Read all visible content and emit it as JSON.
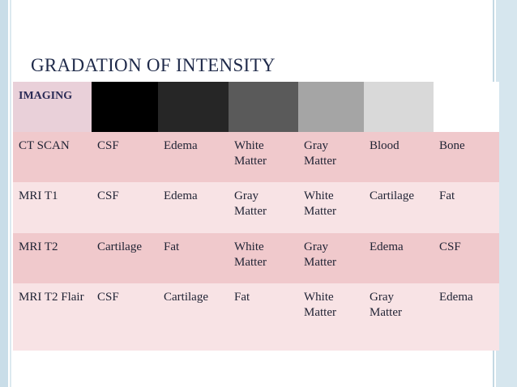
{
  "title": "GRADATION OF INTENSITY",
  "table": {
    "header": "IMAGING",
    "rows": [
      [
        "CT SCAN",
        "CSF",
        "Edema",
        "White Matter",
        "Gray Matter",
        "Blood",
        "Bone"
      ],
      [
        "MRI T1",
        "CSF",
        "Edema",
        "Gray Matter",
        "White Matter",
        "Cartilage",
        "Fat"
      ],
      [
        "MRI T2",
        "Cartilage",
        "Fat",
        "White Matter",
        "Gray Matter",
        "Edema",
        "CSF"
      ],
      [
        "MRI T2 Flair",
        "CSF",
        "Cartilage",
        "Fat",
        "White Matter",
        "Gray Matter",
        "Edema"
      ]
    ]
  }
}
